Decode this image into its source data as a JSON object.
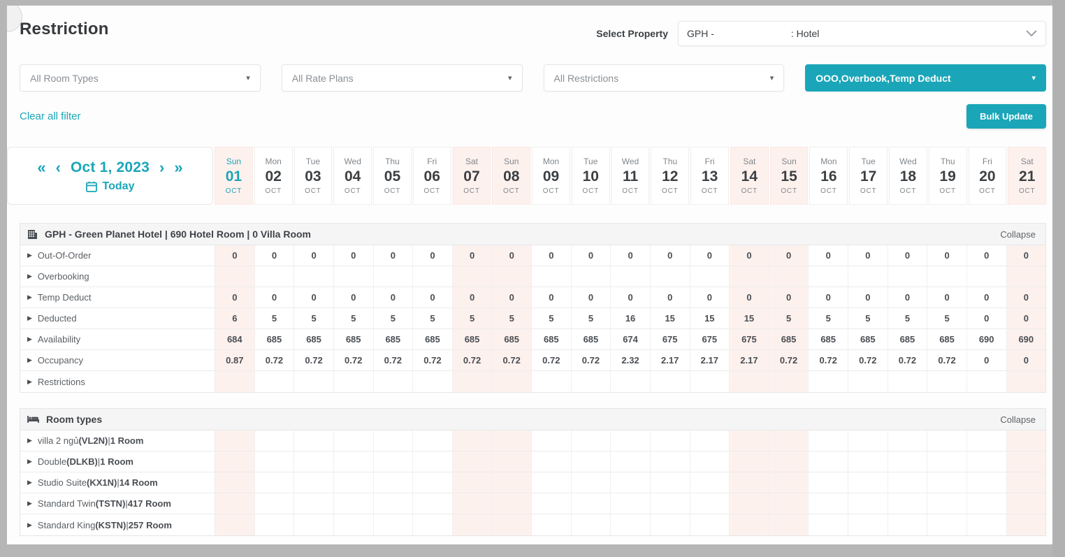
{
  "accent_color": "#1aa6b8",
  "weekend_color": "#fdf1ee",
  "header": {
    "title": "Restriction",
    "select_property_label": "Select Property",
    "property_left": "GPH -",
    "property_right": ": Hotel"
  },
  "filters": {
    "room_types": "All Room Types",
    "rate_plans": "All Rate Plans",
    "restrictions": "All Restrictions",
    "selected_restrictions": "OOO,Overbook,Temp Deduct",
    "clear_all": "Clear all filter",
    "bulk_update": "Bulk Update"
  },
  "date_nav": {
    "first": "«",
    "prev": "‹",
    "date": "Oct 1, 2023",
    "next": "›",
    "last": "»",
    "today": "Today"
  },
  "calendar": {
    "month": "OCT",
    "days": [
      {
        "dow": "Sun",
        "num": "01",
        "weekend": true,
        "today": true
      },
      {
        "dow": "Mon",
        "num": "02",
        "weekend": false,
        "today": false
      },
      {
        "dow": "Tue",
        "num": "03",
        "weekend": false,
        "today": false
      },
      {
        "dow": "Wed",
        "num": "04",
        "weekend": false,
        "today": false
      },
      {
        "dow": "Thu",
        "num": "05",
        "weekend": false,
        "today": false
      },
      {
        "dow": "Fri",
        "num": "06",
        "weekend": false,
        "today": false
      },
      {
        "dow": "Sat",
        "num": "07",
        "weekend": true,
        "today": false
      },
      {
        "dow": "Sun",
        "num": "08",
        "weekend": true,
        "today": false
      },
      {
        "dow": "Mon",
        "num": "09",
        "weekend": false,
        "today": false
      },
      {
        "dow": "Tue",
        "num": "10",
        "weekend": false,
        "today": false
      },
      {
        "dow": "Wed",
        "num": "11",
        "weekend": false,
        "today": false
      },
      {
        "dow": "Thu",
        "num": "12",
        "weekend": false,
        "today": false
      },
      {
        "dow": "Fri",
        "num": "13",
        "weekend": false,
        "today": false
      },
      {
        "dow": "Sat",
        "num": "14",
        "weekend": true,
        "today": false
      },
      {
        "dow": "Sun",
        "num": "15",
        "weekend": true,
        "today": false
      },
      {
        "dow": "Mon",
        "num": "16",
        "weekend": false,
        "today": false
      },
      {
        "dow": "Tue",
        "num": "17",
        "weekend": false,
        "today": false
      },
      {
        "dow": "Wed",
        "num": "18",
        "weekend": false,
        "today": false
      },
      {
        "dow": "Thu",
        "num": "19",
        "weekend": false,
        "today": false
      },
      {
        "dow": "Fri",
        "num": "20",
        "weekend": false,
        "today": false
      },
      {
        "dow": "Sat",
        "num": "21",
        "weekend": true,
        "today": false
      }
    ]
  },
  "sections": [
    {
      "icon": "building-icon",
      "title": "GPH - Green Planet Hotel | 690 Hotel Room | 0 Villa Room",
      "collapse_label": "Collapse",
      "rows": [
        {
          "parts": [
            {
              "t": "Out-Of-Order",
              "b": false
            }
          ],
          "values": [
            "0",
            "0",
            "0",
            "0",
            "0",
            "0",
            "0",
            "0",
            "0",
            "0",
            "0",
            "0",
            "0",
            "0",
            "0",
            "0",
            "0",
            "0",
            "0",
            "0",
            "0"
          ]
        },
        {
          "parts": [
            {
              "t": "Overbooking",
              "b": false
            }
          ],
          "values": [
            "",
            "",
            "",
            "",
            "",
            "",
            "",
            "",
            "",
            "",
            "",
            "",
            "",
            "",
            "",
            "",
            "",
            "",
            "",
            "",
            ""
          ]
        },
        {
          "parts": [
            {
              "t": "Temp Deduct",
              "b": false
            }
          ],
          "values": [
            "0",
            "0",
            "0",
            "0",
            "0",
            "0",
            "0",
            "0",
            "0",
            "0",
            "0",
            "0",
            "0",
            "0",
            "0",
            "0",
            "0",
            "0",
            "0",
            "0",
            "0"
          ]
        },
        {
          "parts": [
            {
              "t": "Deducted",
              "b": false
            }
          ],
          "values": [
            "6",
            "5",
            "5",
            "5",
            "5",
            "5",
            "5",
            "5",
            "5",
            "5",
            "16",
            "15",
            "15",
            "15",
            "5",
            "5",
            "5",
            "5",
            "5",
            "0",
            "0"
          ]
        },
        {
          "parts": [
            {
              "t": "Availability",
              "b": false
            }
          ],
          "values": [
            "684",
            "685",
            "685",
            "685",
            "685",
            "685",
            "685",
            "685",
            "685",
            "685",
            "674",
            "675",
            "675",
            "675",
            "685",
            "685",
            "685",
            "685",
            "685",
            "690",
            "690"
          ]
        },
        {
          "parts": [
            {
              "t": "Occupancy",
              "b": false
            }
          ],
          "values": [
            "0.87",
            "0.72",
            "0.72",
            "0.72",
            "0.72",
            "0.72",
            "0.72",
            "0.72",
            "0.72",
            "0.72",
            "2.32",
            "2.17",
            "2.17",
            "2.17",
            "0.72",
            "0.72",
            "0.72",
            "0.72",
            "0.72",
            "0",
            "0"
          ]
        },
        {
          "parts": [
            {
              "t": "Restrictions",
              "b": false
            }
          ],
          "values": [
            "",
            "",
            "",
            "",
            "",
            "",
            "",
            "",
            "",
            "",
            "",
            "",
            "",
            "",
            "",
            "",
            "",
            "",
            "",
            "",
            ""
          ]
        }
      ]
    },
    {
      "icon": "bed-icon",
      "title": "Room types",
      "collapse_label": "Collapse",
      "rows": [
        {
          "parts": [
            {
              "t": "villa 2 ngủ",
              "b": false
            },
            {
              "t": "(VL2N)",
              "b": true
            },
            {
              "t": " | ",
              "b": false
            },
            {
              "t": "1 Room",
              "b": true
            }
          ],
          "values": []
        },
        {
          "parts": [
            {
              "t": "Double",
              "b": false
            },
            {
              "t": "(DLKB)",
              "b": true
            },
            {
              "t": " | ",
              "b": false
            },
            {
              "t": "1 Room",
              "b": true
            }
          ],
          "values": []
        },
        {
          "parts": [
            {
              "t": "Studio Suite",
              "b": false
            },
            {
              "t": "(KX1N)",
              "b": true
            },
            {
              "t": " | ",
              "b": false
            },
            {
              "t": "14 Room",
              "b": true
            }
          ],
          "values": []
        },
        {
          "parts": [
            {
              "t": "Standard Twin",
              "b": false
            },
            {
              "t": "(TSTN)",
              "b": true
            },
            {
              "t": " | ",
              "b": false
            },
            {
              "t": "417 Room",
              "b": true
            }
          ],
          "values": []
        },
        {
          "parts": [
            {
              "t": "Standard King",
              "b": false
            },
            {
              "t": "(KSTN)",
              "b": true
            },
            {
              "t": " | ",
              "b": false
            },
            {
              "t": "257 Room",
              "b": true
            }
          ],
          "values": []
        }
      ]
    }
  ]
}
